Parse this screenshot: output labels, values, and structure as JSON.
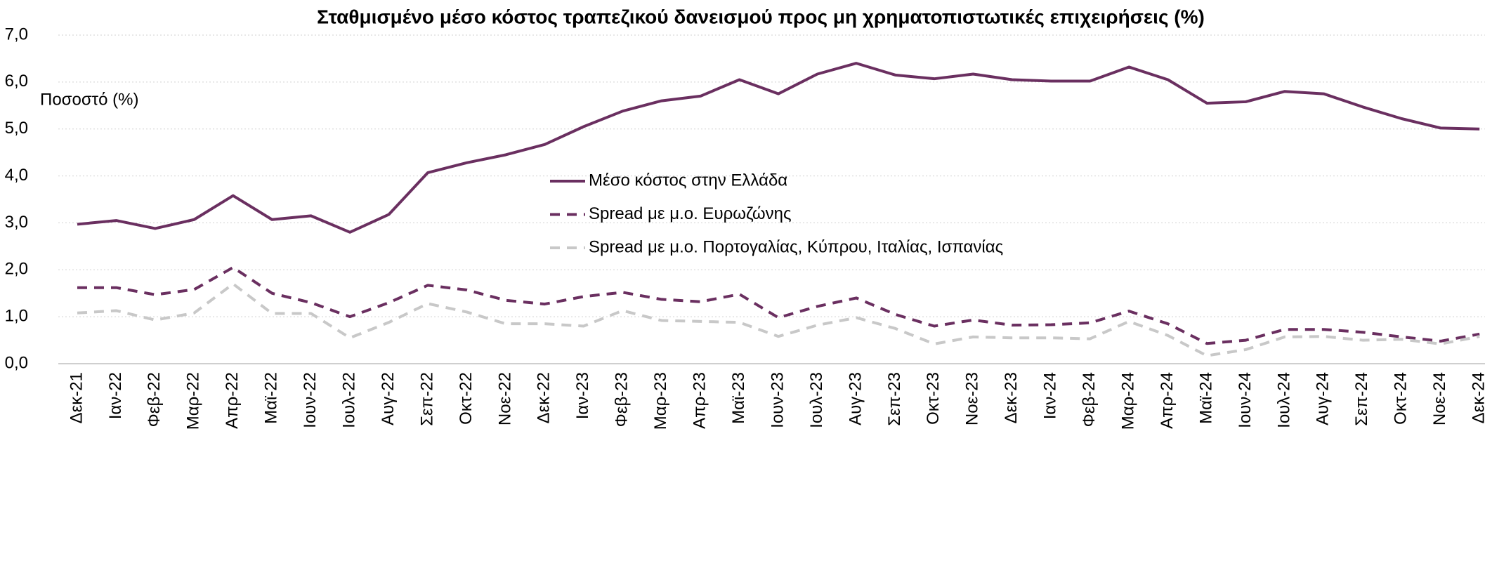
{
  "chart_data": {
    "type": "line",
    "title": "Σταθμισμένο μέσο κόστος τραπεζικού δανεισμού προς μη χρηματοπιστωτικές επιχειρήσεις (%)",
    "y_label": "Ποσοστό (%)",
    "categories": [
      "Δεκ-21",
      "Ιαν-22",
      "Φεβ-22",
      "Μαρ-22",
      "Απρ-22",
      "Μαϊ-22",
      "Ιουν-22",
      "Ιουλ-22",
      "Αυγ-22",
      "Σεπ-22",
      "Οκτ-22",
      "Νοε-22",
      "Δεκ-22",
      "Ιαν-23",
      "Φεβ-23",
      "Μαρ-23",
      "Απρ-23",
      "Μαϊ-23",
      "Ιουν-23",
      "Ιουλ-23",
      "Αυγ-23",
      "Σεπ-23",
      "Οκτ-23",
      "Νοε-23",
      "Δεκ-23",
      "Ιαν-24",
      "Φεβ-24",
      "Μαρ-24",
      "Απρ-24",
      "Μαϊ-24",
      "Ιουν-24",
      "Ιουλ-24",
      "Αυγ-24",
      "Σεπ-24",
      "Οκτ-24",
      "Νοε-24",
      "Δεκ-24"
    ],
    "series": [
      {
        "name": "Μέσο κόστος στην Ελλάδα",
        "color": "#6a2f60",
        "dash": "solid",
        "values": [
          2.97,
          3.05,
          2.88,
          3.07,
          3.58,
          3.07,
          3.15,
          2.8,
          3.18,
          4.07,
          4.28,
          4.45,
          4.67,
          5.05,
          5.38,
          5.6,
          5.7,
          6.05,
          5.75,
          6.17,
          6.4,
          6.15,
          6.07,
          6.17,
          6.05,
          6.02,
          6.02,
          6.32,
          6.05,
          5.55,
          5.58,
          5.8,
          5.75,
          5.47,
          5.22,
          5.02,
          5.0
        ]
      },
      {
        "name": "Spread με μ.ο. Ευρωζώνης",
        "color": "#6a2f60",
        "dash": "dashed",
        "values": [
          1.62,
          1.62,
          1.47,
          1.58,
          2.05,
          1.5,
          1.3,
          1.0,
          1.3,
          1.67,
          1.57,
          1.35,
          1.27,
          1.43,
          1.52,
          1.37,
          1.32,
          1.48,
          0.98,
          1.22,
          1.4,
          1.05,
          0.8,
          0.93,
          0.82,
          0.83,
          0.87,
          1.12,
          0.85,
          0.43,
          0.5,
          0.73,
          0.73,
          0.67,
          0.57,
          0.48,
          0.63
        ]
      },
      {
        "name": "Spread με μ.ο. Πορτογαλίας, Κύπρου, Ιταλίας, Ισπανίας",
        "color": "#c8c8c8",
        "dash": "dashed",
        "values": [
          1.08,
          1.13,
          0.93,
          1.08,
          1.7,
          1.07,
          1.07,
          0.55,
          0.88,
          1.28,
          1.1,
          0.85,
          0.85,
          0.8,
          1.13,
          0.92,
          0.9,
          0.88,
          0.58,
          0.82,
          0.98,
          0.75,
          0.42,
          0.57,
          0.55,
          0.55,
          0.53,
          0.9,
          0.6,
          0.17,
          0.3,
          0.57,
          0.58,
          0.5,
          0.52,
          0.42,
          0.58
        ]
      }
    ],
    "ylim": [
      0,
      7
    ],
    "yticks": [
      {
        "value": 0,
        "label": "0,0"
      },
      {
        "value": 1,
        "label": "1,0"
      },
      {
        "value": 2,
        "label": "2,0"
      },
      {
        "value": 3,
        "label": "3,0"
      },
      {
        "value": 4,
        "label": "4,0"
      },
      {
        "value": 5,
        "label": "5,0"
      },
      {
        "value": 6,
        "label": "6,0"
      },
      {
        "value": 7,
        "label": "7,0"
      }
    ],
    "grid": true
  }
}
